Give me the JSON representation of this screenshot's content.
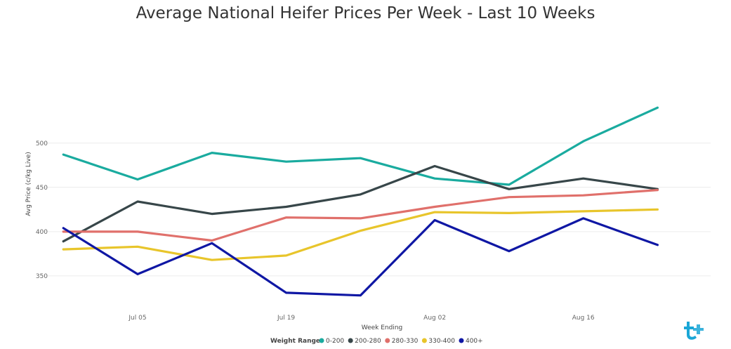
{
  "chart_data": {
    "type": "line",
    "title": "Average National Heifer Prices Per Week - Last 10 Weeks",
    "xlabel": "Week Ending",
    "ylabel": "Avg Price (c/kg Live)",
    "x": [
      "2024-06-28",
      "2024-07-05",
      "2024-07-12",
      "2024-07-19",
      "2024-07-26",
      "2024-08-02",
      "2024-08-09",
      "2024-08-16",
      "2024-08-23"
    ],
    "x_tick_labels": [
      "Jul 05",
      "Jul 19",
      "Aug 02",
      "Aug 16"
    ],
    "x_tick_dates": [
      "2024-07-05",
      "2024-07-19",
      "2024-08-02",
      "2024-08-16"
    ],
    "x_range": [
      "2024-06-26",
      "2024-08-28"
    ],
    "y_ticks": [
      350,
      400,
      450,
      500
    ],
    "ylim": [
      319,
      614
    ],
    "grid": true,
    "legend_title": "Weight Range",
    "legend_position": "bottom",
    "series": [
      {
        "name": "0-200",
        "color": "#1aab9f",
        "values": [
          487,
          459,
          489,
          479,
          483,
          460,
          453,
          502,
          540
        ]
      },
      {
        "name": "200-280",
        "color": "#374649",
        "values": [
          389,
          434,
          420,
          428,
          442,
          474,
          448,
          460,
          448
        ]
      },
      {
        "name": "280-330",
        "color": "#e0706b",
        "values": [
          400,
          400,
          390,
          416,
          415,
          428,
          439,
          441,
          447
        ]
      },
      {
        "name": "330-400",
        "color": "#e8c52b",
        "values": [
          380,
          383,
          368,
          373,
          401,
          422,
          421,
          423,
          425
        ]
      },
      {
        "name": "400+",
        "color": "#0f17a4",
        "values": [
          404,
          352,
          387,
          331,
          328,
          413,
          378,
          415,
          385
        ]
      }
    ]
  }
}
